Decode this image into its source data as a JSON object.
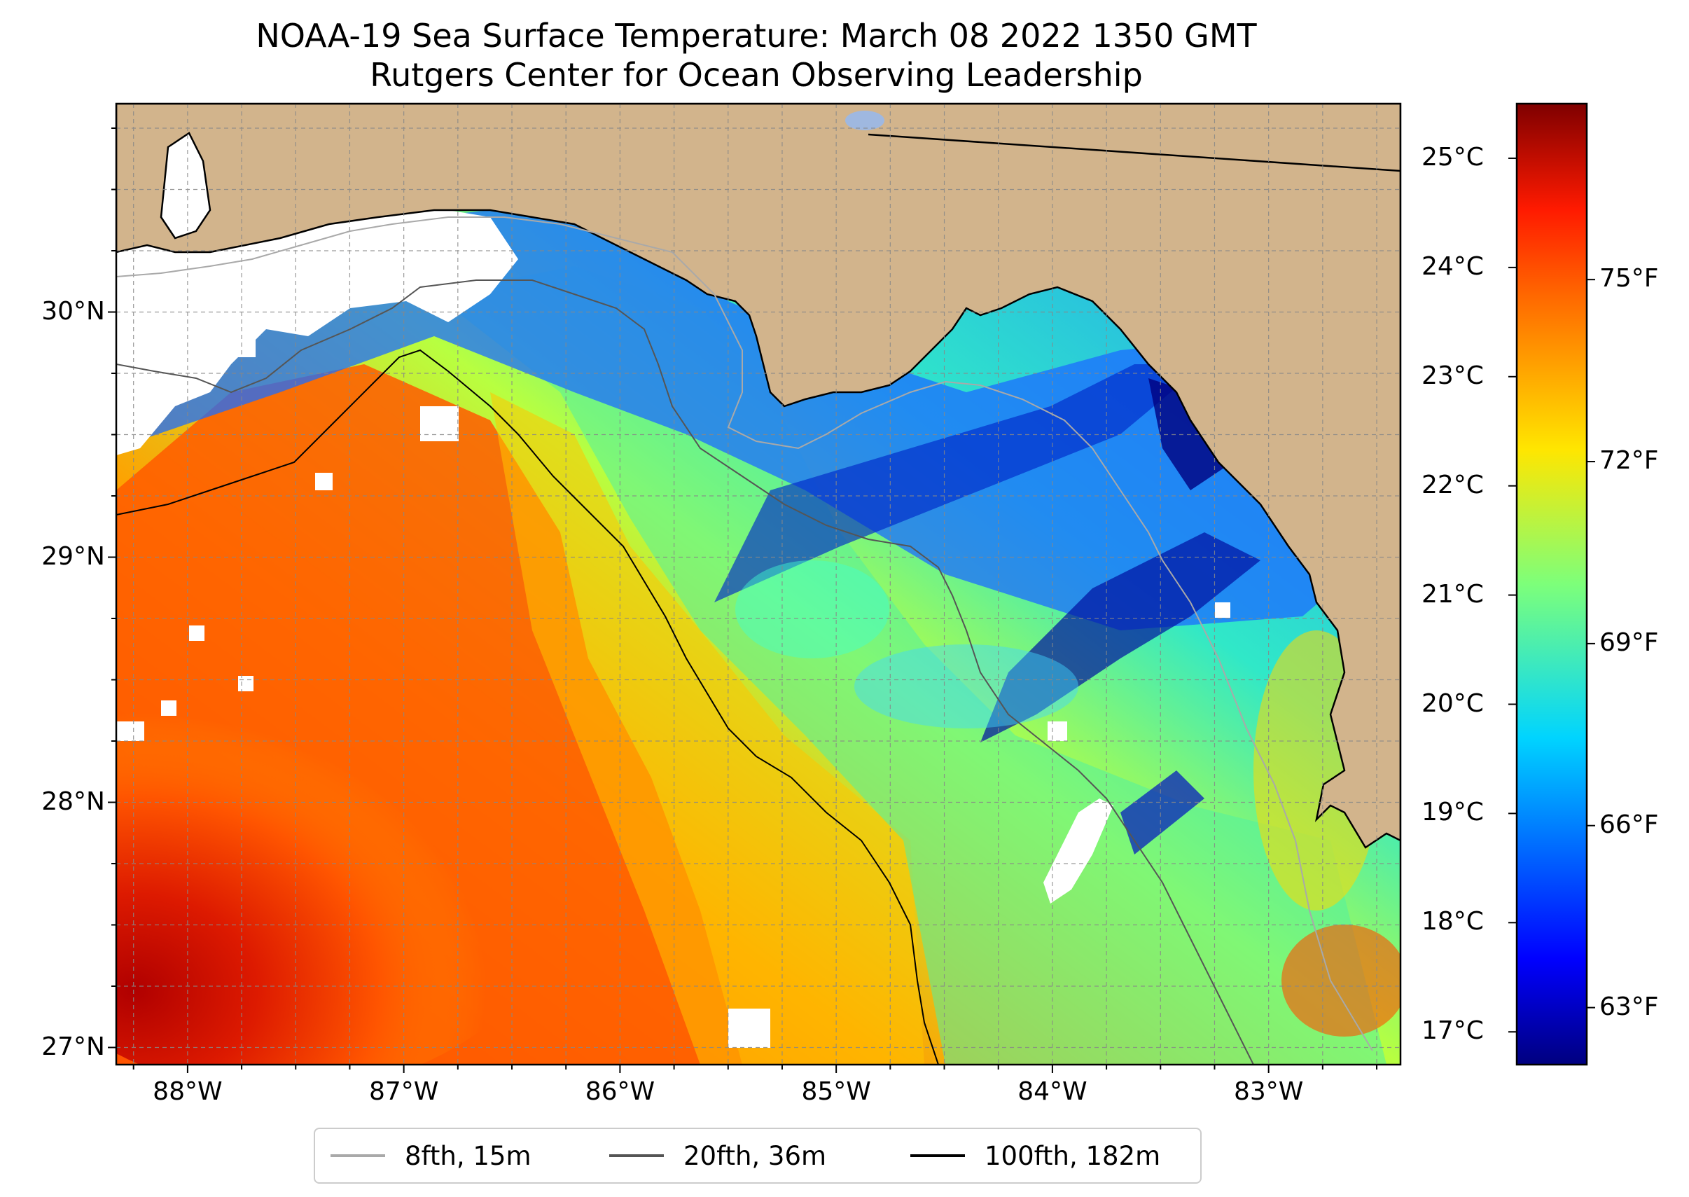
{
  "title": {
    "line1": "NOAA-19 Sea Surface Temperature: March 08 2022 1350 GMT",
    "line2": "Rutgers Center for Ocean Observing Leadership"
  },
  "map": {
    "lon_range": [
      -88.33,
      -82.39
    ],
    "lat_range": [
      26.93,
      30.85
    ],
    "lon_ticks": [
      "88°W",
      "87°W",
      "86°W",
      "85°W",
      "84°W",
      "83°W"
    ],
    "lon_tick_values": [
      -88,
      -87,
      -86,
      -85,
      -84,
      -83
    ],
    "lat_ticks": [
      "27°N",
      "28°N",
      "29°N",
      "30°N"
    ],
    "lat_tick_values": [
      27,
      28,
      29,
      30
    ],
    "land_color": "#d2b48c",
    "cloud_color": "#ffffff",
    "gridlines": true,
    "colormap": "jet"
  },
  "colorbar": {
    "celsius_ticks": [
      "25°C",
      "24°C",
      "23°C",
      "22°C",
      "21°C",
      "20°C",
      "19°C",
      "18°C",
      "17°C"
    ],
    "celsius_values": [
      25,
      24,
      23,
      22,
      21,
      20,
      19,
      18,
      17
    ],
    "fahrenheit_ticks": [
      "75°F",
      "72°F",
      "69°F",
      "66°F",
      "63°F"
    ],
    "fahrenheit_values": [
      75,
      72,
      69,
      66,
      63
    ],
    "range_c": [
      16.7,
      25.5
    ]
  },
  "legend": {
    "items": [
      {
        "label": "8fth, 15m",
        "color": "#a9a9a9"
      },
      {
        "label": "20fth, 36m",
        "color": "#555555"
      },
      {
        "label": "100fth, 182m",
        "color": "#000000"
      }
    ]
  }
}
